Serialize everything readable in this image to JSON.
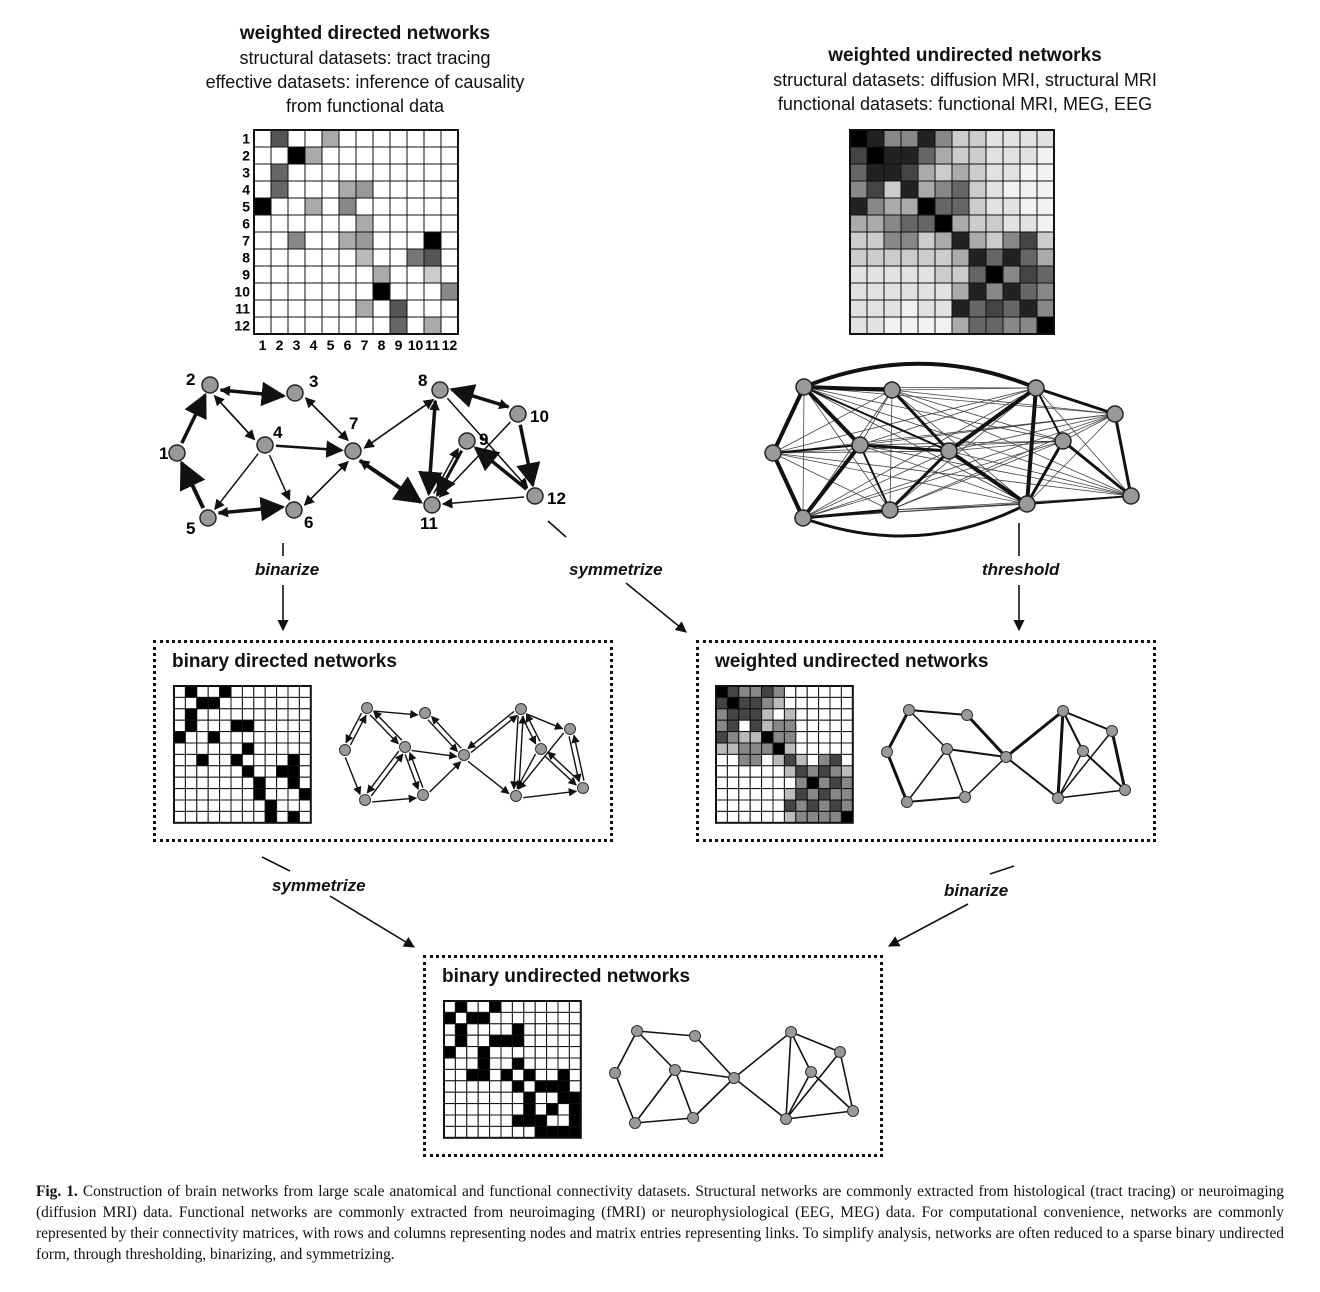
{
  "top_left": {
    "title": "weighted directed networks",
    "lines": [
      "structural datasets: tract tracing",
      "effective datasets: inference of causality",
      "from functional data"
    ]
  },
  "top_right": {
    "title": "weighted undirected networks",
    "lines": [
      "structural datasets: diffusion MRI, structural MRI",
      "functional datasets: functional MRI, MEG, EEG"
    ]
  },
  "operations": {
    "binarize_left": "binarize",
    "symmetrize_middle": "symmetrize",
    "threshold": "threshold",
    "symmetrize_bottom": "symmetrize",
    "binarize_right": "binarize"
  },
  "boxes": {
    "binary_directed": "binary directed networks",
    "weighted_undirected": "weighted undirected networks",
    "binary_undirected": "binary undirected networks"
  },
  "matrix_labels": [
    "1",
    "2",
    "3",
    "4",
    "5",
    "6",
    "7",
    "8",
    "9",
    "10",
    "11",
    "12"
  ],
  "node_labels": [
    "1",
    "2",
    "3",
    "4",
    "5",
    "6",
    "7",
    "8",
    "9",
    "10",
    "11",
    "12"
  ],
  "caption": {
    "label": "Fig. 1.",
    "text": "Construction of brain networks from large scale anatomical and functional connectivity datasets. Structural networks are commonly extracted from histological (tract tracing) or neuroimaging (diffusion MRI) data. Functional networks are commonly extracted from neuroimaging (fMRI) or neurophysiological (EEG, MEG) data. For computational convenience, networks are commonly represented by their connectivity matrices, with rows and columns representing nodes and matrix entries representing links. To simplify analysis, networks are often reduced to a sparse binary undirected form, through thresholding, binarizing, and symmetrizing."
  }
}
